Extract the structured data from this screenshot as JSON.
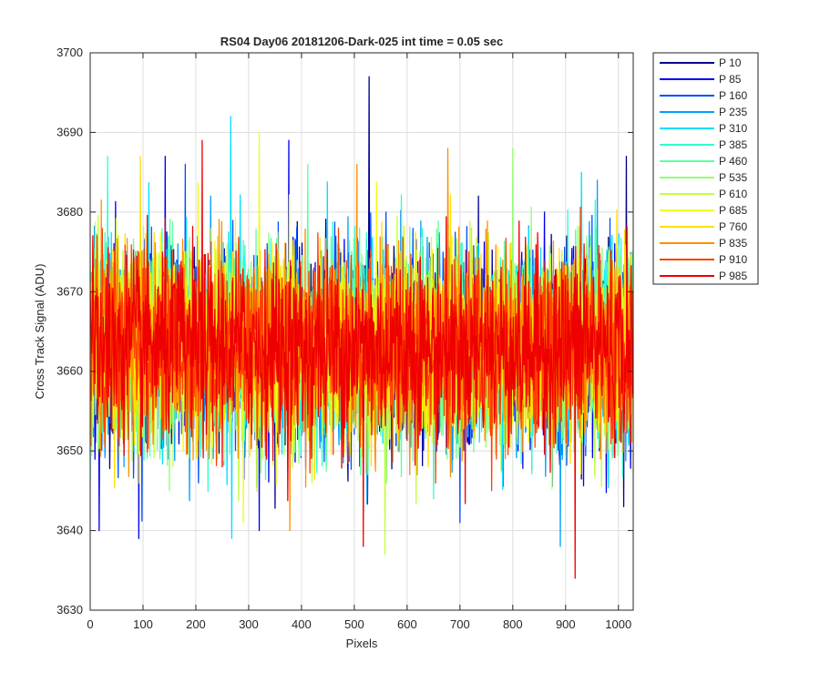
{
  "chart_data": {
    "type": "line",
    "title": "RS04 Day06 20181206-Dark-025 int time = 0.05 sec",
    "xlabel": "Pixels",
    "ylabel": "Cross Track Signal (ADU)",
    "xlim": [
      0,
      1028
    ],
    "ylim": [
      3630,
      3700
    ],
    "xticks": [
      0,
      100,
      200,
      300,
      400,
      500,
      600,
      700,
      800,
      900,
      1000
    ],
    "yticks": [
      3630,
      3640,
      3650,
      3660,
      3670,
      3680,
      3690,
      3700
    ],
    "grid": true,
    "legend_position": "outside-top-right",
    "n_points": 1028,
    "baseline_mean": 3663,
    "series": [
      {
        "name": "P 10",
        "color": "#00008f",
        "spikes": [
          [
            528,
            3697
          ],
          [
            1010,
            3643
          ],
          [
            1015,
            3687
          ]
        ]
      },
      {
        "name": "P 85",
        "color": "#0000ef",
        "spikes": [
          [
            142,
            3687
          ],
          [
            376,
            3689
          ],
          [
            92,
            3639
          ],
          [
            320,
            3640
          ],
          [
            860,
            3680
          ]
        ]
      },
      {
        "name": "P 160",
        "color": "#0050ff",
        "spikes": [
          [
            180,
            3686
          ],
          [
            560,
            3680
          ],
          [
            700,
            3641
          ]
        ]
      },
      {
        "name": "P 235",
        "color": "#00a0ff",
        "spikes": [
          [
            228,
            3682
          ],
          [
            890,
            3638
          ],
          [
            960,
            3684
          ]
        ]
      },
      {
        "name": "P 310",
        "color": "#00dfff",
        "spikes": [
          [
            266,
            3692
          ],
          [
            930,
            3685
          ],
          [
            268,
            3639
          ]
        ]
      },
      {
        "name": "P 385",
        "color": "#30ffcf",
        "spikes": [
          [
            33,
            3687
          ],
          [
            650,
            3644
          ]
        ]
      },
      {
        "name": "P 460",
        "color": "#60ff9f",
        "spikes": [
          [
            510,
            3678
          ],
          [
            800,
            3676
          ]
        ]
      },
      {
        "name": "P 535",
        "color": "#8fff70",
        "spikes": [
          [
            800,
            3688
          ],
          [
            150,
            3645
          ]
        ]
      },
      {
        "name": "P 610",
        "color": "#bfff40",
        "spikes": [
          [
            558,
            3637
          ],
          [
            420,
            3646
          ]
        ]
      },
      {
        "name": "P 685",
        "color": "#efff10",
        "spikes": [
          [
            320,
            3690
          ],
          [
            290,
            3641
          ]
        ]
      },
      {
        "name": "P 760",
        "color": "#ffdf00",
        "spikes": [
          [
            95,
            3687
          ],
          [
            640,
            3648
          ]
        ]
      },
      {
        "name": "P 835",
        "color": "#ff8f00",
        "spikes": [
          [
            677,
            3688
          ],
          [
            378,
            3640
          ]
        ]
      },
      {
        "name": "P 910",
        "color": "#ff4000",
        "spikes": [
          [
            470,
            3678
          ],
          [
            760,
            3645
          ]
        ]
      },
      {
        "name": "P 985",
        "color": "#ef0000",
        "spikes": [
          [
            212,
            3689
          ],
          [
            517,
            3638
          ],
          [
            918,
            3634
          ],
          [
            935,
            3676
          ]
        ]
      }
    ]
  }
}
